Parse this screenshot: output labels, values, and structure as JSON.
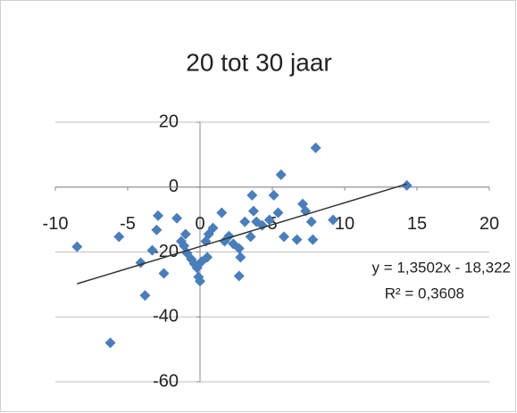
{
  "chart_data": {
    "type": "scatter",
    "title": "20 tot 30 jaar",
    "series": [
      {
        "name": "20 tot 30 jaar",
        "color": "#4a7ebb",
        "x": [
          -8.5,
          -5.6,
          -6.2,
          -4.1,
          -3.8,
          -3.3,
          -3.0,
          -2.9,
          -2.5,
          -1.6,
          -1.3,
          -1.1,
          -1.0,
          -0.9,
          -0.6,
          -0.4,
          -0.2,
          -0.1,
          0,
          0.1,
          0.4,
          0.6,
          0.9,
          0.5,
          1.5,
          1.7,
          2.0,
          2.3,
          2.7,
          2.8,
          2.7,
          3.1,
          3.5,
          3.6,
          3.7,
          3.9,
          4.3,
          4.8,
          5.1,
          5.4,
          5.6,
          5.8,
          6.7,
          7.1,
          7.3,
          7.7,
          7.8,
          8.0,
          9.2,
          14.3
        ],
        "y": [
          -18.4,
          -15.3,
          -48,
          -23.3,
          -33.4,
          -19.5,
          -13.2,
          -8.8,
          -26.6,
          -9.6,
          -16.7,
          -18.1,
          -14.5,
          -20.3,
          -22.2,
          -23.6,
          -24.9,
          -27.7,
          -29,
          -23,
          -16.7,
          -14.5,
          -12.6,
          -21.6,
          -7.9,
          -16.7,
          -15.1,
          -17.5,
          -18.9,
          -21.6,
          -27.4,
          -10.7,
          -15.3,
          -2.5,
          -7.4,
          -10.7,
          -11.8,
          -10.1,
          -2.5,
          -7.9,
          3.8,
          -15.3,
          -16.2,
          -5.2,
          -7.4,
          -10.7,
          -16.2,
          12.1,
          -10.1,
          0.5
        ]
      }
    ],
    "trendline": {
      "slope": 1.3502,
      "intercept": -18.322,
      "xrange": [
        -8.5,
        14.3
      ],
      "equation": "y = 1,3502x - 18,322",
      "r2": 0.3608,
      "r2_label": "R² = 0,3608"
    },
    "xlim": [
      -10,
      20
    ],
    "xticks": [
      -10,
      -5,
      0,
      5,
      10,
      15,
      20
    ],
    "ylim": [
      -60,
      20
    ],
    "yticks": [
      -60,
      -40,
      -20,
      0,
      20
    ],
    "grid": true
  }
}
